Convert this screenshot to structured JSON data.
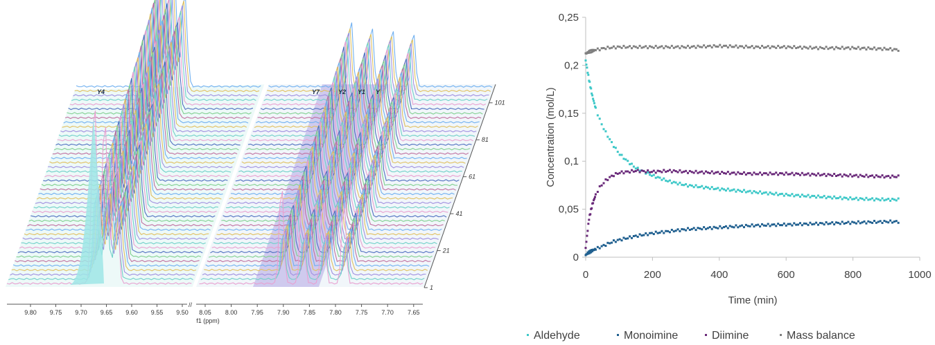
{
  "nmr": {
    "x_axis_label": "f1 (ppm)",
    "x_ticks_left": [
      "9.80",
      "9.75",
      "9.70",
      "9.65",
      "9.60",
      "9.55",
      "9.50"
    ],
    "x_ticks_right": [
      "8.05",
      "8.00",
      "7.95",
      "7.90",
      "7.85",
      "7.80",
      "7.75",
      "7.70",
      "7.65"
    ],
    "spectrum_indices": [
      "1",
      "21",
      "41",
      "61",
      "81",
      "101"
    ],
    "peak_labels": [
      "Y4",
      "Y7",
      "Y2",
      "Y1",
      "Y"
    ],
    "colors": [
      "#e8a0d0",
      "#6fd0c8",
      "#a090e0",
      "#e0c060",
      "#70b0f0",
      "#c070a0",
      "#80d090",
      "#5070c0"
    ]
  },
  "chart_data": {
    "type": "scatter",
    "xlabel": "Time (min)",
    "ylabel": "Concentration (mol/L)",
    "xlim": [
      0,
      1000
    ],
    "ylim": [
      0,
      0.25
    ],
    "x_ticks": [
      "0",
      "200",
      "400",
      "600",
      "800",
      "1000"
    ],
    "y_ticks": [
      "0",
      "0,05",
      "0,1",
      "0,15",
      "0,2",
      "0,25"
    ],
    "legend_position": "bottom",
    "series": [
      {
        "name": "Aldehyde",
        "color": "#3ec8c8",
        "points": [
          [
            0,
            0.205
          ],
          [
            5,
            0.195
          ],
          [
            10,
            0.185
          ],
          [
            20,
            0.168
          ],
          [
            30,
            0.155
          ],
          [
            40,
            0.145
          ],
          [
            50,
            0.137
          ],
          [
            60,
            0.13
          ],
          [
            80,
            0.118
          ],
          [
            100,
            0.108
          ],
          [
            125,
            0.1
          ],
          [
            150,
            0.093
          ],
          [
            200,
            0.085
          ],
          [
            250,
            0.079
          ],
          [
            300,
            0.075
          ],
          [
            400,
            0.071
          ],
          [
            500,
            0.068
          ],
          [
            600,
            0.065
          ],
          [
            700,
            0.063
          ],
          [
            800,
            0.061
          ],
          [
            900,
            0.06
          ],
          [
            940,
            0.06
          ]
        ]
      },
      {
        "name": "Monoimine",
        "color": "#1f5f8f",
        "points": [
          [
            0,
            0.002
          ],
          [
            5,
            0.004
          ],
          [
            10,
            0.005
          ],
          [
            20,
            0.007
          ],
          [
            40,
            0.01
          ],
          [
            60,
            0.013
          ],
          [
            80,
            0.016
          ],
          [
            100,
            0.018
          ],
          [
            150,
            0.022
          ],
          [
            200,
            0.025
          ],
          [
            250,
            0.027
          ],
          [
            300,
            0.029
          ],
          [
            400,
            0.031
          ],
          [
            500,
            0.033
          ],
          [
            600,
            0.034
          ],
          [
            700,
            0.035
          ],
          [
            800,
            0.036
          ],
          [
            900,
            0.037
          ],
          [
            940,
            0.037
          ]
        ]
      },
      {
        "name": "Diimine",
        "color": "#6a2a7a",
        "points": [
          [
            0,
            0.01
          ],
          [
            5,
            0.025
          ],
          [
            10,
            0.04
          ],
          [
            20,
            0.055
          ],
          [
            30,
            0.065
          ],
          [
            40,
            0.072
          ],
          [
            60,
            0.08
          ],
          [
            80,
            0.085
          ],
          [
            100,
            0.088
          ],
          [
            150,
            0.09
          ],
          [
            200,
            0.089
          ],
          [
            250,
            0.09
          ],
          [
            300,
            0.089
          ],
          [
            400,
            0.088
          ],
          [
            500,
            0.087
          ],
          [
            600,
            0.087
          ],
          [
            700,
            0.086
          ],
          [
            800,
            0.085
          ],
          [
            900,
            0.084
          ],
          [
            940,
            0.084
          ]
        ]
      },
      {
        "name": "Mass balance",
        "color": "#7f7f7f",
        "points": [
          [
            0,
            0.212
          ],
          [
            10,
            0.214
          ],
          [
            30,
            0.216
          ],
          [
            60,
            0.218
          ],
          [
            100,
            0.219
          ],
          [
            200,
            0.219
          ],
          [
            300,
            0.219
          ],
          [
            400,
            0.22
          ],
          [
            500,
            0.219
          ],
          [
            600,
            0.219
          ],
          [
            700,
            0.218
          ],
          [
            800,
            0.218
          ],
          [
            900,
            0.217
          ],
          [
            940,
            0.216
          ]
        ]
      }
    ]
  }
}
